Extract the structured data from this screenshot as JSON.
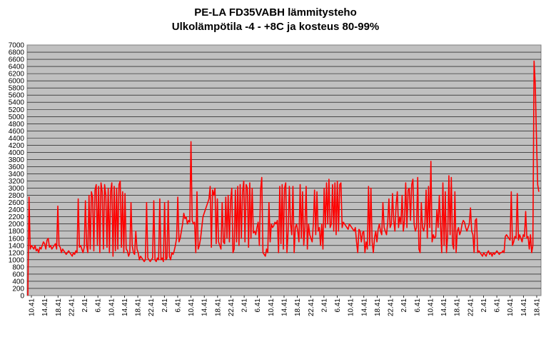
{
  "chart_data": {
    "type": "line",
    "title": "PE-LA FD35VABH lämmitysteho",
    "subtitle": "Ulkolämpötila  -4 - +8C ja kosteus 80-99%",
    "xlabel": "",
    "ylabel": "",
    "ylim": [
      0,
      7000
    ],
    "y_ticks": [
      0,
      200,
      400,
      600,
      800,
      1000,
      1200,
      1400,
      1600,
      1800,
      2000,
      2200,
      2400,
      2600,
      2800,
      3000,
      3200,
      3400,
      3600,
      3800,
      4000,
      4200,
      4400,
      4600,
      4800,
      5000,
      5200,
      5400,
      5600,
      5800,
      6000,
      6200,
      6400,
      6600,
      6800,
      7000
    ],
    "x_tick_labels": [
      "10.41",
      "14.41",
      "18.41",
      "22.41",
      "2.41",
      "6.41",
      "10.41",
      "14.41",
      "18.41",
      "22.41",
      "2.41",
      "6.41",
      "10.41",
      "14.41",
      "18.41",
      "22.41",
      "2.41",
      "6.41",
      "10.41",
      "14.41",
      "18.41",
      "22.41",
      "2.41",
      "6.41",
      "10.41",
      "14.41",
      "18.41",
      "22.41",
      "2.41",
      "6.41",
      "10.41",
      "14.41",
      "18.41",
      "22.41",
      "2.41",
      "6.41",
      "10.41",
      "14.41",
      "18.41"
    ],
    "grid": true,
    "legend": "none",
    "series_color": "#ff0000",
    "plot_background": "#c0c0c0",
    "series": [
      {
        "values": [
          0,
          2750,
          1300,
          1400,
          1350,
          1300,
          1400,
          1250,
          1300,
          1200,
          1350,
          1300,
          1400,
          1500,
          1450,
          1300,
          1550,
          1600,
          1350,
          1400,
          1300,
          1350,
          1400,
          1450,
          1300,
          2500,
          1400,
          1350,
          1200,
          1300,
          1250,
          1200,
          1150,
          1200,
          1250,
          1200,
          1150,
          1100,
          1200,
          1150,
          1250,
          1200,
          2700,
          1350,
          1400,
          1300,
          1200,
          1350,
          2650,
          1400,
          1200,
          2800,
          1300,
          2900,
          2750,
          1250,
          2950,
          3100,
          1400,
          3050,
          1200,
          3150,
          2900,
          1300,
          3100,
          2800,
          1350,
          3000,
          1200,
          2900,
          3150,
          1100,
          3050,
          1250,
          3000,
          1300,
          3100,
          3200,
          1350,
          2900,
          1200,
          2850,
          1300,
          1250,
          1100,
          1200,
          2600,
          1400,
          1200,
          1150,
          1800,
          1300,
          1200,
          1000,
          1100,
          1050,
          1000,
          950,
          1000,
          2600,
          1050,
          1000,
          950,
          1000,
          1050,
          2650,
          1000,
          950,
          1050,
          1000,
          2700,
          1000,
          1050,
          950,
          2600,
          1000,
          1050,
          2650,
          1100,
          1000,
          1200,
          1150,
          1250,
          1400,
          1600,
          2750,
          1500,
          1600,
          1800,
          2000,
          2300,
          2150,
          2200,
          2000,
          2100,
          2050,
          4300,
          2100,
          2000,
          2050,
          1200,
          2900,
          1300,
          1400,
          1600,
          1900,
          2200,
          2300,
          2400,
          2500,
          2600,
          2700,
          3050,
          1350,
          2950,
          2800,
          3000,
          1450,
          2700,
          1500,
          1400,
          1300,
          2600,
          1500,
          1450,
          2750,
          1600,
          2800,
          1500,
          2650,
          3000,
          1200,
          1300,
          2950,
          1500,
          3050,
          1400,
          3100,
          1600,
          2900,
          3200,
          1500,
          3100,
          3000,
          1350,
          3150,
          1600,
          3000,
          1750,
          1800,
          1700,
          1900,
          2050,
          1400,
          2950,
          3300,
          1200,
          1150,
          1100,
          1300,
          1200,
          2600,
          1500,
          2000,
          1900,
          1950,
          2050,
          2000,
          2100,
          1200,
          3050,
          1450,
          3100,
          1300,
          3000,
          3150,
          1200,
          1800,
          3050,
          2000,
          1700,
          3050,
          1200,
          1900,
          2000,
          1800,
          1500,
          3100,
          1600,
          2900,
          1400,
          1900,
          3050,
          1300,
          2000,
          1700,
          1600,
          1500,
          2000,
          2950,
          1700,
          2900,
          1800,
          1900,
          1400,
          2000,
          1300,
          3000,
          1900,
          3150,
          2000,
          3250,
          1900,
          2000,
          3100,
          1800,
          3150,
          1700,
          3200,
          1800,
          3100,
          3150,
          1900,
          2050,
          2000,
          1950,
          1900,
          1850,
          2000,
          1950,
          1900,
          1850,
          1800,
          1900,
          1500,
          1200,
          1850,
          1800,
          1500,
          1750,
          1800,
          1200,
          1500,
          1300,
          3050,
          1400,
          3000,
          1500,
          1200,
          1600,
          1800,
          1500,
          1850,
          2000,
          1800,
          1700,
          2600,
          1900,
          1800,
          1700,
          2050,
          2700,
          1900,
          2000,
          2850,
          2100,
          1800,
          2550,
          2900,
          1900,
          2200,
          2000,
          2800,
          1800,
          2100,
          3150,
          1900,
          2950,
          3000,
          2100,
          3100,
          3250,
          2000,
          1800,
          1900,
          3300,
          1300,
          1200,
          2600,
          1900,
          1800,
          2000,
          2950,
          1600,
          3050,
          1900,
          3750,
          1500,
          1700,
          1600,
          1650,
          2400,
          1900,
          2800,
          2000,
          1200,
          3150,
          1400,
          2900,
          1200,
          1700,
          3350,
          1700,
          3300,
          1450,
          1300,
          2900,
          1200,
          1800,
          1900,
          1700,
          1800,
          2000,
          2100,
          2050,
          1900,
          1800,
          1900,
          2000,
          2450,
          1800,
          1700,
          1200,
          2100,
          2150,
          1200,
          1250,
          1200,
          1150,
          1100,
          1200,
          1150,
          1100,
          1200,
          1250,
          1150,
          1200,
          1100,
          1200,
          1150,
          1200,
          1250,
          1200,
          1150,
          1200,
          1200,
          1250,
          1200,
          1650,
          1700,
          1650,
          1600,
          1550,
          2900,
          1400,
          1500,
          1650,
          1600,
          2850,
          1550,
          1700,
          1600,
          1500,
          1700,
          1650,
          2350,
          1600,
          1650,
          1300,
          1700,
          1200,
          1400,
          6550,
          5900,
          4400,
          3100,
          2900
        ]
      }
    ]
  }
}
